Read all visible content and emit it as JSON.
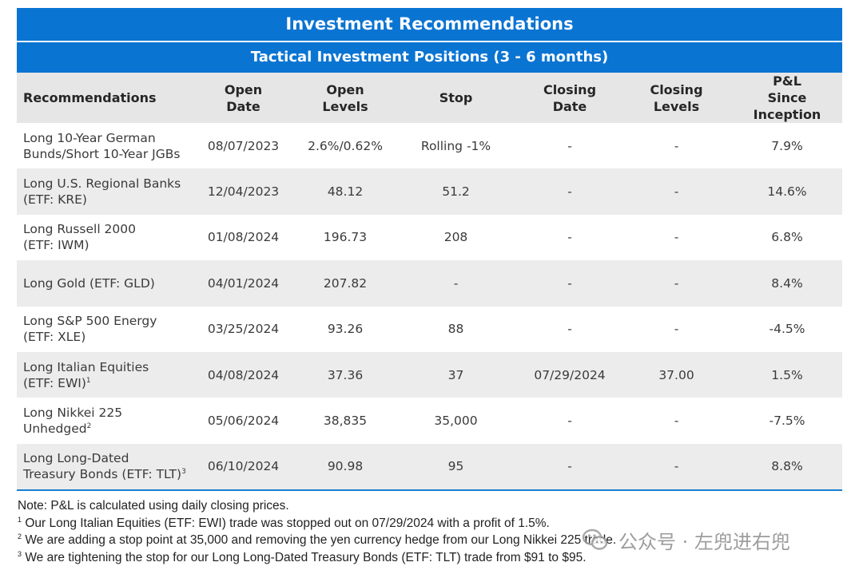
{
  "title": "Investment Recommendations",
  "subtitle": "Tactical Investment Positions (3 - 6 months)",
  "columns": [
    {
      "line1": "Recommendations",
      "line2": ""
    },
    {
      "line1": "Open",
      "line2": "Date"
    },
    {
      "line1": "Open",
      "line2": "Levels"
    },
    {
      "line1": "Stop",
      "line2": ""
    },
    {
      "line1": "Closing",
      "line2": "Date"
    },
    {
      "line1": "Closing",
      "line2": "Levels"
    },
    {
      "line1": "P&L",
      "line2": "Since Inception"
    }
  ],
  "rows": [
    {
      "name1": "Long 10-Year German",
      "name2": "Bunds/Short 10-Year JGBs",
      "sup": "",
      "open_date": "08/07/2023",
      "open_levels": "2.6%/0.62%",
      "stop": "Rolling -1%",
      "closing_date": "-",
      "closing_levels": "-",
      "pnl": "7.9%"
    },
    {
      "name1": "Long U.S. Regional Banks",
      "name2": "(ETF: KRE)",
      "sup": "",
      "open_date": "12/04/2023",
      "open_levels": "48.12",
      "stop": "51.2",
      "closing_date": "-",
      "closing_levels": "-",
      "pnl": "14.6%"
    },
    {
      "name1": "Long Russell 2000",
      "name2": "(ETF: IWM)",
      "sup": "",
      "open_date": "01/08/2024",
      "open_levels": "196.73",
      "stop": "208",
      "closing_date": "-",
      "closing_levels": "-",
      "pnl": "6.8%"
    },
    {
      "name1": "Long Gold (ETF: GLD)",
      "name2": "",
      "sup": "",
      "open_date": "04/01/2024",
      "open_levels": "207.82",
      "stop": "-",
      "closing_date": "-",
      "closing_levels": "-",
      "pnl": "8.4%"
    },
    {
      "name1": "Long S&P 500 Energy",
      "name2": "(ETF: XLE)",
      "sup": "",
      "open_date": "03/25/2024",
      "open_levels": "93.26",
      "stop": "88",
      "closing_date": "-",
      "closing_levels": "-",
      "pnl": "-4.5%"
    },
    {
      "name1": "Long Italian Equities",
      "name2": "(ETF: EWI)",
      "sup": "1",
      "open_date": "04/08/2024",
      "open_levels": "37.36",
      "stop": "37",
      "closing_date": "07/29/2024",
      "closing_levels": "37.00",
      "pnl": "1.5%"
    },
    {
      "name1": "Long Nikkei 225",
      "name2": "Unhedged",
      "sup": "2",
      "open_date": "05/06/2024",
      "open_levels": "38,835",
      "stop": "35,000",
      "closing_date": "-",
      "closing_levels": "-",
      "pnl": "-7.5%"
    },
    {
      "name1": "Long Long-Dated",
      "name2": "Treasury Bonds (ETF: TLT)",
      "sup": "3",
      "open_date": "06/10/2024",
      "open_levels": "90.98",
      "stop": "95",
      "closing_date": "-",
      "closing_levels": "-",
      "pnl": "8.8%"
    }
  ],
  "notes": {
    "note": "Note: P&L is calculated using daily closing prices.",
    "footnotes": [
      {
        "mark": "1",
        "text": " Our Long Italian Equities (ETF: EWI) trade was stopped out on 07/29/2024 with a profit of 1.5%."
      },
      {
        "mark": "2",
        "text": " We are adding a stop point at 35,000 and removing the yen currency hedge from our Long Nikkei 225 trade."
      },
      {
        "mark": "3",
        "text": " We are tightening the stop for our Long Long-Dated Treasury Bonds (ETF: TLT) trade from $91 to $95."
      }
    ]
  },
  "watermark": {
    "text": "公众号 · 左兜进右兜",
    "icon": "wechat-icon"
  }
}
